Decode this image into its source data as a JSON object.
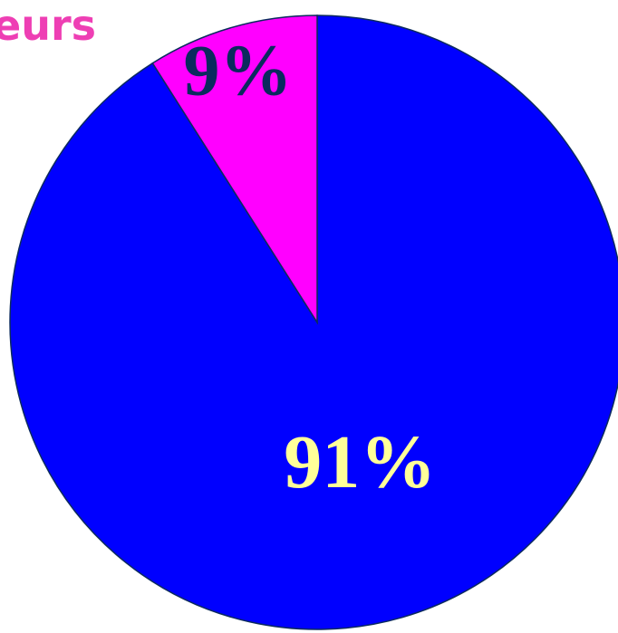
{
  "title": "eurs",
  "colors": {
    "title": "#ee3fb4",
    "outline": "#0b2a5e"
  },
  "chart_data": {
    "type": "pie",
    "start_angle_deg": 0,
    "direction": "clockwise",
    "slices": [
      {
        "label": "91%",
        "value": 91,
        "color": "#0000ff",
        "label_color": "#ffff99"
      },
      {
        "label": "9%",
        "value": 9,
        "color": "#ff00ff",
        "label_color": "#0b2a5e"
      }
    ]
  }
}
